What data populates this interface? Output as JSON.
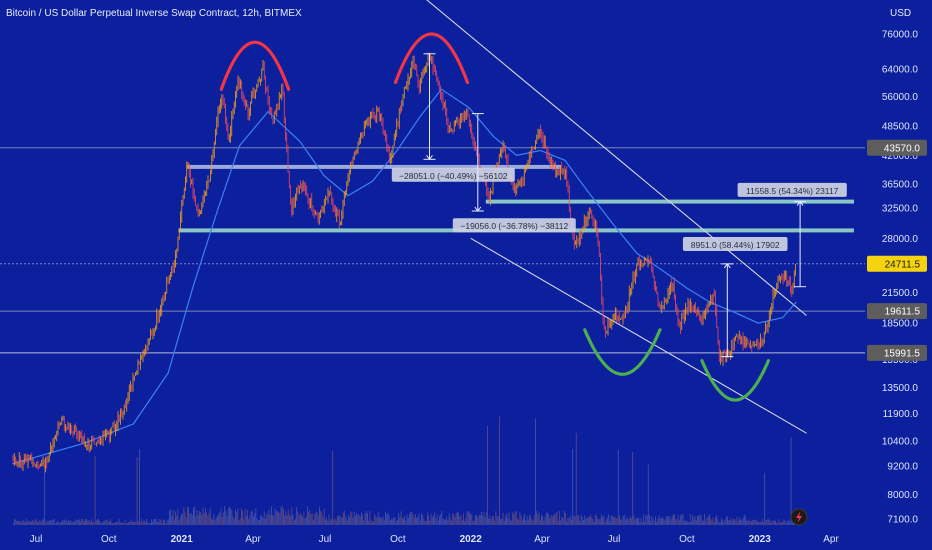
{
  "chart_data": {
    "type": "candlestick",
    "title": "Bitcoin / US Dollar Perpetual Inverse Swap Contract, 12h, BITMEX",
    "currency": "USD",
    "y_axis": {
      "scale": "log",
      "ticks": [
        76000,
        64000,
        56000,
        48500,
        42000,
        36500,
        32500,
        28000,
        24500,
        21500,
        18500,
        15500,
        13500,
        11900,
        10400,
        9200,
        8000,
        7100
      ],
      "tick_labels": [
        "76000.0",
        "64000.0",
        "56000.0",
        "48500.0",
        "42000.0",
        "36500.0",
        "32500.0",
        "28000.0",
        "24500.0",
        "21500.0",
        "18500.0",
        "15500.0",
        "13500.0",
        "11900.0",
        "10400.0",
        "9200.0",
        "8000.0",
        "7100.0"
      ]
    },
    "x_axis": {
      "ticks": [
        {
          "date": "2020-07-01",
          "label": "Jul",
          "bold": false
        },
        {
          "date": "2020-10-01",
          "label": "Oct",
          "bold": false
        },
        {
          "date": "2021-01-01",
          "label": "2021",
          "bold": true
        },
        {
          "date": "2021-04-01",
          "label": "Apr",
          "bold": false
        },
        {
          "date": "2021-07-01",
          "label": "Jul",
          "bold": false
        },
        {
          "date": "2021-10-01",
          "label": "Oct",
          "bold": false
        },
        {
          "date": "2022-01-01",
          "label": "2022",
          "bold": true
        },
        {
          "date": "2022-04-01",
          "label": "Apr",
          "bold": false
        },
        {
          "date": "2022-07-01",
          "label": "Jul",
          "bold": false
        },
        {
          "date": "2022-10-01",
          "label": "Oct",
          "bold": false
        },
        {
          "date": "2023-01-01",
          "label": "2023",
          "bold": true
        },
        {
          "date": "2023-04-01",
          "label": "Apr",
          "bold": false
        }
      ]
    },
    "price_path": [
      [
        "2020-06-01",
        9500
      ],
      [
        "2020-07-15",
        9300
      ],
      [
        "2020-08-01",
        11500
      ],
      [
        "2020-09-05",
        10200
      ],
      [
        "2020-10-01",
        10700
      ],
      [
        "2020-10-20",
        12200
      ],
      [
        "2020-11-10",
        15500
      ],
      [
        "2020-12-01",
        19000
      ],
      [
        "2020-12-25",
        26000
      ],
      [
        "2021-01-08",
        40500
      ],
      [
        "2021-01-22",
        31000
      ],
      [
        "2021-02-05",
        38000
      ],
      [
        "2021-02-20",
        57000
      ],
      [
        "2021-03-01",
        45000
      ],
      [
        "2021-03-13",
        61000
      ],
      [
        "2021-03-25",
        52000
      ],
      [
        "2021-04-14",
        64000
      ],
      [
        "2021-04-25",
        49000
      ],
      [
        "2021-05-08",
        58000
      ],
      [
        "2021-05-19",
        32000
      ],
      [
        "2021-06-01",
        37000
      ],
      [
        "2021-06-22",
        30500
      ],
      [
        "2021-07-05",
        35000
      ],
      [
        "2021-07-20",
        29800
      ],
      [
        "2021-08-01",
        40000
      ],
      [
        "2021-08-23",
        49500
      ],
      [
        "2021-09-07",
        52000
      ],
      [
        "2021-09-21",
        41000
      ],
      [
        "2021-10-06",
        55000
      ],
      [
        "2021-10-20",
        66000
      ],
      [
        "2021-10-27",
        58500
      ],
      [
        "2021-11-10",
        69000
      ],
      [
        "2021-11-25",
        57000
      ],
      [
        "2021-12-04",
        47000
      ],
      [
        "2021-12-27",
        51000
      ],
      [
        "2022-01-10",
        41000
      ],
      [
        "2022-01-24",
        34000
      ],
      [
        "2022-02-10",
        44500
      ],
      [
        "2022-02-24",
        35000
      ],
      [
        "2022-03-10",
        38500
      ],
      [
        "2022-03-29",
        48000
      ],
      [
        "2022-04-11",
        40000
      ],
      [
        "2022-05-01",
        38500
      ],
      [
        "2022-05-12",
        26500
      ],
      [
        "2022-05-30",
        31800
      ],
      [
        "2022-06-10",
        29000
      ],
      [
        "2022-06-18",
        17700
      ],
      [
        "2022-07-01",
        19500
      ],
      [
        "2022-07-13",
        19000
      ],
      [
        "2022-07-30",
        24500
      ],
      [
        "2022-08-15",
        24800
      ],
      [
        "2022-08-28",
        19800
      ],
      [
        "2022-09-13",
        22500
      ],
      [
        "2022-09-21",
        18200
      ],
      [
        "2022-10-05",
        20300
      ],
      [
        "2022-10-21",
        19000
      ],
      [
        "2022-11-05",
        21400
      ],
      [
        "2022-11-10",
        15700
      ],
      [
        "2022-11-21",
        15800
      ],
      [
        "2022-12-05",
        17400
      ],
      [
        "2022-12-20",
        16600
      ],
      [
        "2023-01-01",
        16600
      ],
      [
        "2023-01-12",
        18500
      ],
      [
        "2023-01-18",
        21300
      ],
      [
        "2023-02-01",
        23500
      ],
      [
        "2023-02-10",
        21600
      ],
      [
        "2023-02-16",
        24711.5
      ]
    ],
    "moving_average_path": [
      [
        "2020-06-01",
        9300
      ],
      [
        "2020-09-01",
        10300
      ],
      [
        "2020-11-01",
        11300
      ],
      [
        "2020-12-15",
        14500
      ],
      [
        "2021-01-15",
        22000
      ],
      [
        "2021-02-15",
        32000
      ],
      [
        "2021-03-15",
        44000
      ],
      [
        "2021-04-20",
        52000
      ],
      [
        "2021-05-30",
        45000
      ],
      [
        "2021-06-30",
        38000
      ],
      [
        "2021-07-30",
        34500
      ],
      [
        "2021-08-30",
        37000
      ],
      [
        "2021-09-30",
        43000
      ],
      [
        "2021-10-30",
        51000
      ],
      [
        "2021-11-25",
        58000
      ],
      [
        "2021-12-30",
        53000
      ],
      [
        "2022-01-30",
        46000
      ],
      [
        "2022-02-28",
        42000
      ],
      [
        "2022-03-30",
        43000
      ],
      [
        "2022-04-30",
        41000
      ],
      [
        "2022-05-30",
        35000
      ],
      [
        "2022-06-30",
        30000
      ],
      [
        "2022-07-30",
        26000
      ],
      [
        "2022-08-30",
        24000
      ],
      [
        "2022-09-30",
        22000
      ],
      [
        "2022-10-30",
        20500
      ],
      [
        "2022-11-30",
        19500
      ],
      [
        "2022-12-30",
        18500
      ],
      [
        "2023-01-30",
        19000
      ],
      [
        "2023-02-16",
        20500
      ]
    ],
    "horizontal_levels": [
      {
        "price": 43570.0,
        "label": "43570.0",
        "tag_color": "#5d5d5d",
        "line_color": "#8d97c8"
      },
      {
        "price": 24711.5,
        "label": "24711.5",
        "tag_color": "#f5d40f",
        "line_color": "#8d97c8",
        "dashed": true
      },
      {
        "price": 19611.5,
        "label": "19611.5",
        "tag_color": "#5d5d5d",
        "line_color": "#8d97c8"
      },
      {
        "price": 15991.5,
        "label": "15991.5",
        "tag_color": "#5d5d5d",
        "line_color": "#d4d8e8"
      }
    ],
    "zones": [
      {
        "start": "2021-01-08",
        "end": "2022-04-25",
        "price": 39700,
        "color": "#a9b9e2"
      },
      {
        "start": "2020-12-28",
        "end": "2023-04-30",
        "price": 29100,
        "color": "#99d8cc"
      },
      {
        "start": "2022-01-20",
        "end": "2023-04-30",
        "price": 33500,
        "color": "#99d8cc"
      }
    ],
    "channel": {
      "upper": [
        [
          "2021-10-20",
          95000
        ],
        [
          "2023-03-01",
          19200
        ]
      ],
      "lower": [
        [
          "2022-01-01",
          28000
        ],
        [
          "2023-03-01",
          10800
        ]
      ],
      "color": "#d4d8e8"
    },
    "arcs": [
      {
        "start": "2021-02-20",
        "end": "2021-05-16",
        "peak": 73000,
        "base": 58000,
        "direction": "up",
        "color": "#f23645"
      },
      {
        "start": "2021-09-28",
        "end": "2021-12-28",
        "peak": 76000,
        "base": 60000,
        "direction": "up",
        "color": "#f23645"
      },
      {
        "start": "2022-05-25",
        "end": "2022-08-28",
        "low": 14400,
        "base": 17900,
        "direction": "down",
        "color": "#4caf50"
      },
      {
        "start": "2022-10-20",
        "end": "2023-01-12",
        "low": 12700,
        "base": 15400,
        "direction": "down",
        "color": "#4caf50"
      }
    ],
    "measures": [
      {
        "date": "2021-11-10",
        "from": 69000,
        "to": 41200,
        "label_date": "2021-12-10",
        "label_price": 38000,
        "label": "−28051.0 (−40.49%) −56102"
      },
      {
        "date": "2022-01-10",
        "from": 51500,
        "to": 32000,
        "label_date": "2022-02-25",
        "label_price": 29700,
        "label": "−19056.0 (−36.78%) −38112"
      },
      {
        "date": "2022-11-21",
        "from": 15700,
        "to": 24700,
        "label_date": "2022-12-01",
        "label_price": 27100,
        "label": "8951.0 (58.44%) 17902"
      },
      {
        "date": "2023-02-21",
        "from": 22100,
        "to": 33500,
        "label_date": "2023-02-11",
        "label_price": 35300,
        "label": "11558.5 (54.34%) 23117"
      }
    ],
    "volume": {
      "max_ratio_hint": "relative bars at bottom"
    }
  }
}
